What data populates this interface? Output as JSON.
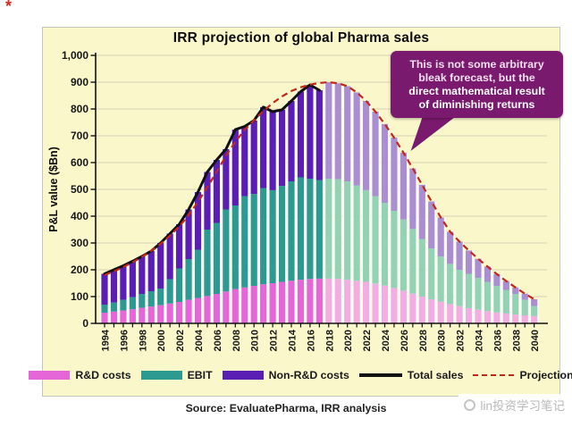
{
  "decorations": {
    "corner_mark": "*"
  },
  "annotation": {
    "lines": [
      "This is not some arbitrary",
      "bleak forecast, but the"
    ],
    "bold_lines": [
      "direct mathematical result",
      "of diminishing returns"
    ]
  },
  "footer": {
    "source": "Source: EvaluatePharma, IRR analysis"
  },
  "watermark": {
    "text": "lin投资学习笔记"
  },
  "chart_data": {
    "type": "bar",
    "title": "IRR projection of global Pharma sales",
    "xlabel": "",
    "ylabel": "P&L value ($Bn)",
    "ylim": [
      0,
      1000
    ],
    "grid": true,
    "legend_position": "bottom",
    "actual_end_year": 2017,
    "x": [
      1994,
      1995,
      1996,
      1997,
      1998,
      1999,
      2000,
      2001,
      2002,
      2003,
      2004,
      2005,
      2006,
      2007,
      2008,
      2009,
      2010,
      2011,
      2012,
      2013,
      2014,
      2015,
      2016,
      2017,
      2018,
      2019,
      2020,
      2021,
      2022,
      2023,
      2024,
      2025,
      2026,
      2027,
      2028,
      2029,
      2030,
      2031,
      2032,
      2033,
      2034,
      2035,
      2036,
      2037,
      2038,
      2039,
      2040
    ],
    "x_tick_labels": [
      "1994",
      "1996",
      "1998",
      "2000",
      "2002",
      "2004",
      "2006",
      "2008",
      "2010",
      "2012",
      "2014",
      "2016",
      "2018",
      "2020",
      "2022",
      "2024",
      "2026",
      "2028",
      "2030",
      "2032",
      "2034",
      "2036",
      "2038",
      "2040"
    ],
    "y_tick_labels": [
      "0",
      "100",
      "200",
      "300",
      "400",
      "500",
      "600",
      "700",
      "800",
      "900",
      "1,000"
    ],
    "series": [
      {
        "name": "R&D costs",
        "type": "bar",
        "values": [
          40,
          44,
          48,
          53,
          58,
          63,
          68,
          74,
          80,
          88,
          95,
          102,
          110,
          119,
          128,
          134,
          140,
          146,
          150,
          155,
          159,
          163,
          166,
          167,
          167,
          166,
          163,
          159,
          155,
          149,
          141,
          132,
          122,
          111,
          100,
          90,
          81,
          72,
          64,
          57,
          51,
          46,
          41,
          37,
          33,
          30,
          27
        ]
      },
      {
        "name": "EBIT",
        "type": "bar",
        "values": [
          30,
          34,
          40,
          45,
          52,
          57,
          62,
          91,
          125,
          152,
          180,
          248,
          265,
          306,
          312,
          341,
          343,
          359,
          347,
          358,
          371,
          382,
          374,
          368,
          373,
          372,
          367,
          356,
          342,
          326,
          309,
          288,
          266,
          241,
          215,
          190,
          169,
          150,
          136,
          128,
          119,
          109,
          99,
          88,
          77,
          58,
          37
        ]
      },
      {
        "name": "Non-R&D costs",
        "type": "bar",
        "values": [
          115,
          122,
          127,
          134,
          140,
          150,
          170,
          170,
          165,
          185,
          215,
          215,
          235,
          225,
          283,
          260,
          274,
          302,
          293,
          284,
          300,
          320,
          350,
          335,
          360,
          358,
          355,
          347,
          333,
          315,
          294,
          273,
          249,
          226,
          202,
          175,
          145,
          120,
          105,
          87,
          71,
          57,
          44,
          33,
          24,
          23,
          26
        ]
      },
      {
        "name": "Total sales",
        "type": "line",
        "x_range": [
          1994,
          2017
        ],
        "values": [
          185,
          200,
          215,
          232,
          250,
          270,
          300,
          335,
          370,
          425,
          490,
          565,
          610,
          650,
          723,
          735,
          757,
          807,
          790,
          797,
          830,
          865,
          890,
          870
        ]
      },
      {
        "name": "Projection",
        "type": "dashed-line",
        "x_range": [
          1994,
          2040
        ],
        "values": [
          180,
          194,
          210,
          228,
          248,
          271,
          297,
          327,
          362,
          404,
          453,
          508,
          565,
          625,
          678,
          722,
          758,
          792,
          822,
          847,
          867,
          881,
          891,
          897,
          900,
          896,
          885,
          862,
          830,
          790,
          744,
          693,
          637,
          578,
          517,
          455,
          395,
          342,
          305,
          272,
          241,
          212,
          184,
          158,
          134,
          111,
          90
        ]
      }
    ],
    "colors": {
      "panel_bg": "#FAF7CB",
      "annotation_bg": "#7A1A6E",
      "rd_solid": "#E566D6",
      "ebit_solid": "#2D9A92",
      "nonrd_solid": "#5A1EB4",
      "rd_faded": "#F2AEE0",
      "ebit_faded": "#93D2B3",
      "nonrd_faded": "#AB8ED0",
      "total_line": "#111111",
      "projection_line": "#C22718",
      "grid_line": "#d5d1b4"
    }
  }
}
